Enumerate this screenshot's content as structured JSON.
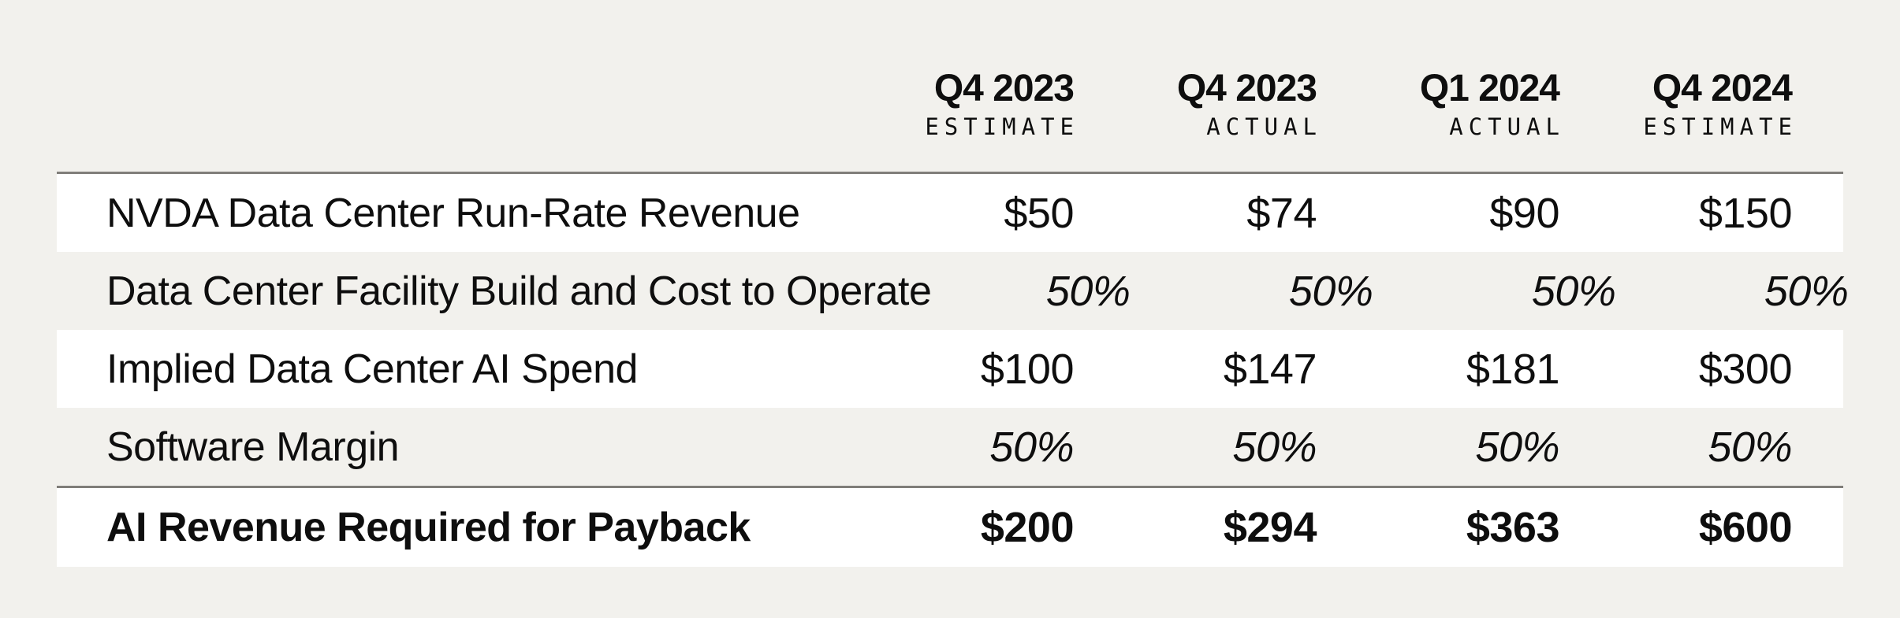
{
  "chart_data": {
    "type": "table",
    "title": "",
    "column_headers": [
      {
        "period": "Q4 2023",
        "qualifier": "ESTIMATE"
      },
      {
        "period": "Q4 2023",
        "qualifier": "ACTUAL"
      },
      {
        "period": "Q1 2024",
        "qualifier": "ACTUAL"
      },
      {
        "period": "Q4 2024",
        "qualifier": "ESTIMATE"
      }
    ],
    "rows": [
      {
        "label": "NVDA Data Center Run-Rate Revenue",
        "values": [
          "$50",
          "$74",
          "$90",
          "$150"
        ]
      },
      {
        "label": "Data Center Facility Build and Cost to Operate",
        "values": [
          "50%",
          "50%",
          "50%",
          "50%"
        ]
      },
      {
        "label": "Implied Data Center AI Spend",
        "values": [
          "$100",
          "$147",
          "$181",
          "$300"
        ]
      },
      {
        "label": "Software Margin",
        "values": [
          "50%",
          "50%",
          "50%",
          "50%"
        ]
      },
      {
        "label": "AI Revenue Required for Payback",
        "values": [
          "$200",
          "$294",
          "$363",
          "$600"
        ]
      }
    ],
    "numeric_values_billions": {
      "nvda_run_rate_revenue": [
        50,
        74,
        90,
        150
      ],
      "facility_build_cost_pct": [
        50,
        50,
        50,
        50
      ],
      "implied_dc_ai_spend": [
        100,
        147,
        181,
        300
      ],
      "software_margin_pct": [
        50,
        50,
        50,
        50
      ],
      "ai_revenue_required_for_payback": [
        200,
        294,
        363,
        600
      ]
    },
    "layout_hints": {
      "row_stripes": "alternating white on beige",
      "alignment": "labels left, values right"
    }
  },
  "colors": {
    "background": "#f2f1ed",
    "stripe": "#ffffff",
    "rule": "#807e7a",
    "text": "#0e0e0e"
  }
}
